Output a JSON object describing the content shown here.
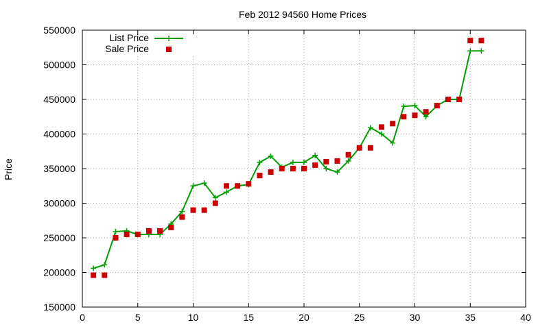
{
  "chart_data": {
    "type": "line",
    "title": "Feb 2012 94560 Home Prices",
    "xlabel": "",
    "ylabel": "Price",
    "xlim": [
      0,
      40
    ],
    "ylim": [
      150000,
      550000
    ],
    "x_ticks": [
      0,
      5,
      10,
      15,
      20,
      25,
      30,
      35,
      40
    ],
    "y_ticks": [
      150000,
      200000,
      250000,
      300000,
      350000,
      400000,
      450000,
      500000,
      550000
    ],
    "grid": true,
    "legend_position": "top-left",
    "series": [
      {
        "name": "List Price",
        "style": "line-plus",
        "color": "#009e00",
        "x": [
          1,
          2,
          3,
          4,
          5,
          6,
          7,
          8,
          9,
          10,
          11,
          12,
          13,
          14,
          15,
          16,
          17,
          18,
          19,
          20,
          21,
          22,
          23,
          24,
          25,
          26,
          27,
          28,
          29,
          30,
          31,
          32,
          33,
          34,
          35,
          36
        ],
        "values": [
          206000,
          211000,
          259000,
          260000,
          255000,
          255000,
          255000,
          270000,
          288000,
          325000,
          329000,
          308000,
          316000,
          325000,
          327000,
          359000,
          368000,
          352000,
          359000,
          359000,
          369000,
          350000,
          345000,
          361000,
          380000,
          409000,
          400000,
          387000,
          440000,
          441000,
          425000,
          441000,
          450000,
          450000,
          520000,
          520000
        ]
      },
      {
        "name": "Sale Price",
        "style": "square-points",
        "color": "#cc0000",
        "x": [
          1,
          2,
          3,
          4,
          5,
          6,
          7,
          8,
          9,
          10,
          11,
          12,
          13,
          14,
          15,
          16,
          17,
          18,
          19,
          20,
          21,
          22,
          23,
          24,
          25,
          26,
          27,
          28,
          29,
          30,
          31,
          32,
          33,
          34,
          35,
          36
        ],
        "values": [
          196000,
          196000,
          250000,
          255000,
          255000,
          260000,
          260000,
          265000,
          280000,
          290000,
          290000,
          300000,
          325000,
          325000,
          328000,
          340000,
          345000,
          350000,
          350000,
          350000,
          355000,
          360000,
          361000,
          370000,
          380000,
          380000,
          410000,
          415000,
          425000,
          427000,
          432000,
          441000,
          450000,
          450000,
          535000,
          535000
        ]
      }
    ]
  }
}
